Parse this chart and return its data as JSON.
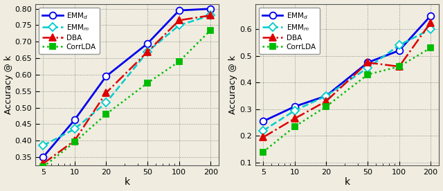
{
  "k_values": [
    5,
    10,
    20,
    50,
    100,
    200
  ],
  "left_plot": {
    "ylabel": "Accuracy @ k",
    "xlabel": "k",
    "ylim": [
      0.325,
      0.815
    ],
    "yticks": [
      0.35,
      0.4,
      0.45,
      0.5,
      0.55,
      0.6,
      0.65,
      0.7,
      0.75,
      0.8
    ],
    "EMM_d": [
      0.35,
      0.463,
      0.595,
      0.695,
      0.795,
      0.8
    ],
    "EMM_m": [
      0.385,
      0.435,
      0.515,
      0.67,
      0.75,
      0.78
    ],
    "DBA": [
      0.33,
      0.4,
      0.545,
      0.67,
      0.765,
      0.78
    ],
    "CorrLDA": [
      0.32,
      0.395,
      0.48,
      0.575,
      0.64,
      0.735
    ]
  },
  "right_plot": {
    "ylabel": "Accuracy @ k",
    "xlabel": "k",
    "ylim": [
      0.09,
      0.695
    ],
    "yticks": [
      0.1,
      0.2,
      0.3,
      0.4,
      0.5,
      0.6
    ],
    "EMM_d": [
      0.255,
      0.31,
      0.35,
      0.475,
      0.52,
      0.65
    ],
    "EMM_m": [
      0.22,
      0.295,
      0.35,
      0.455,
      0.54,
      0.6
    ],
    "DBA": [
      0.195,
      0.265,
      0.33,
      0.475,
      0.46,
      0.625
    ],
    "CorrLDA": [
      0.14,
      0.235,
      0.31,
      0.43,
      0.46,
      0.53
    ]
  },
  "line_styles": {
    "EMM_d": {
      "color": "#0000ee",
      "linestyle": "-",
      "marker": "o",
      "linewidth": 2.0,
      "markersize": 7
    },
    "EMM_m": {
      "color": "#00cccc",
      "linestyle": "--",
      "marker": "D",
      "linewidth": 1.8,
      "markersize": 6
    },
    "DBA": {
      "color": "#dd0000",
      "linestyle": "-.",
      "marker": "^",
      "linewidth": 1.8,
      "markersize": 7
    },
    "CorrLDA": {
      "color": "#00bb00",
      "linestyle": ":",
      "marker": "s",
      "linewidth": 1.8,
      "markersize": 6
    }
  },
  "legend_labels": {
    "EMM_d": "EMM$_d$",
    "EMM_m": "EMM$_m$",
    "DBA": "DBA",
    "CorrLDA": "CorrLDA"
  },
  "bg_color": "#f0ede0",
  "fig_bg_color": "#f0ede0"
}
